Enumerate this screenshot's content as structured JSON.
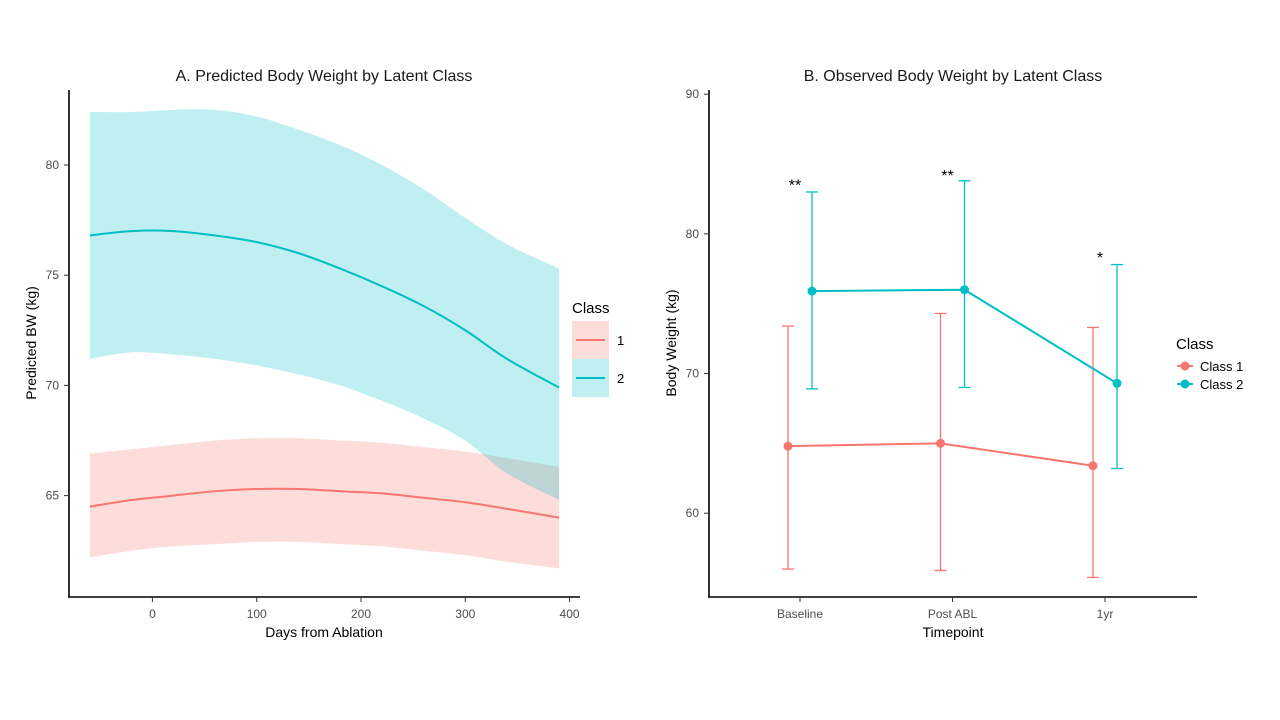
{
  "chart_data": [
    {
      "type": "line",
      "title": "A. Predicted Body Weight by Latent Class",
      "xlabel": "Days from Ablation",
      "ylabel": "Predicted BW (kg)",
      "xlim": [
        -80,
        410
      ],
      "ylim": [
        60.4,
        83.4
      ],
      "xticks": [
        0,
        100,
        200,
        300,
        400
      ],
      "yticks": [
        65,
        70,
        75,
        80
      ],
      "legend": {
        "title": "Class",
        "position": "right"
      },
      "series": [
        {
          "name": "1",
          "color": "#F8766D",
          "band_color": "#F8766D",
          "x": [
            -60,
            -20,
            20,
            60,
            100,
            140,
            180,
            220,
            260,
            300,
            340,
            390
          ],
          "y": [
            64.5,
            64.8,
            65.0,
            65.2,
            65.3,
            65.3,
            65.2,
            65.1,
            64.9,
            64.7,
            64.4,
            64.0
          ],
          "lower": [
            62.2,
            62.5,
            62.7,
            62.8,
            62.9,
            62.9,
            62.8,
            62.7,
            62.5,
            62.3,
            62.0,
            61.7
          ],
          "upper": [
            66.9,
            67.1,
            67.3,
            67.5,
            67.6,
            67.6,
            67.5,
            67.4,
            67.2,
            67.0,
            66.7,
            66.3
          ]
        },
        {
          "name": "2",
          "color": "#00BFC4",
          "band_color": "#00BFC4",
          "x": [
            -60,
            -20,
            20,
            60,
            100,
            140,
            180,
            220,
            260,
            300,
            340,
            390
          ],
          "y": [
            76.8,
            77.0,
            77.0,
            76.8,
            76.5,
            76.0,
            75.3,
            74.5,
            73.6,
            72.5,
            71.2,
            69.9
          ],
          "lower": [
            71.2,
            71.5,
            71.4,
            71.2,
            70.9,
            70.5,
            70.0,
            69.3,
            68.5,
            67.5,
            66.0,
            64.8
          ],
          "upper": [
            82.4,
            82.4,
            82.5,
            82.5,
            82.2,
            81.6,
            80.9,
            80.0,
            78.9,
            77.6,
            76.4,
            75.3
          ]
        }
      ]
    },
    {
      "type": "line",
      "title": "B. Observed Body Weight by Latent Class",
      "xlabel": "Timepoint",
      "ylabel": "Body Weight (kg)",
      "categories": [
        "Baseline",
        "Post ABL",
        "1yr"
      ],
      "ylim": [
        54,
        90.3
      ],
      "yticks": [
        60,
        70,
        80,
        90
      ],
      "legend": {
        "title": "Class",
        "position": "right"
      },
      "series": [
        {
          "name": "Class 1",
          "color": "#F8766D",
          "values": [
            64.8,
            65.0,
            63.4
          ],
          "error_low": [
            56.0,
            55.9,
            55.4
          ],
          "error_high": [
            73.4,
            74.3,
            73.3
          ]
        },
        {
          "name": "Class 2",
          "color": "#00BFC4",
          "values": [
            75.9,
            76.0,
            69.3
          ],
          "error_low": [
            68.9,
            69.0,
            63.2
          ],
          "error_high": [
            83.0,
            83.8,
            77.8
          ]
        }
      ],
      "annotations": [
        {
          "category": "Baseline",
          "text": "**",
          "y": 83.6
        },
        {
          "category": "Post ABL",
          "text": "**",
          "y": 84.3
        },
        {
          "category": "1yr",
          "text": "*",
          "y": 78.4
        }
      ]
    }
  ]
}
